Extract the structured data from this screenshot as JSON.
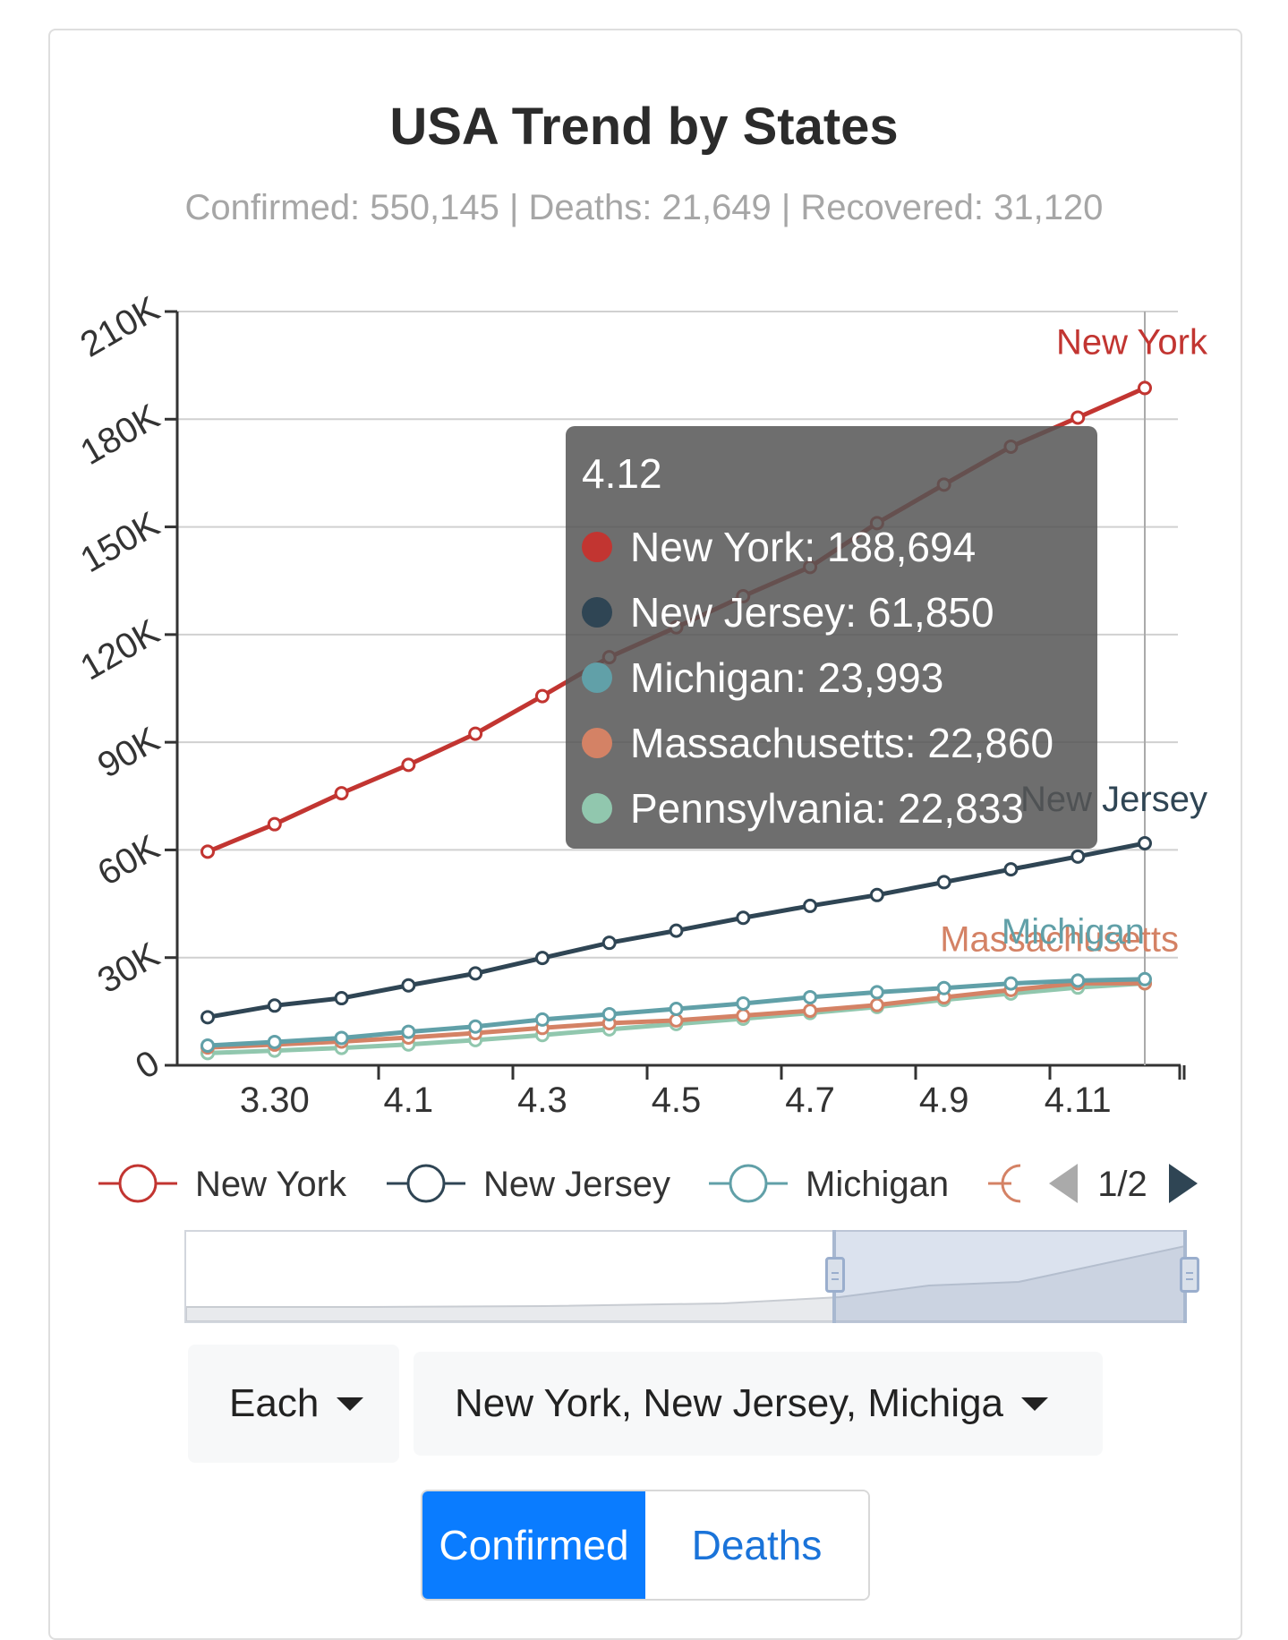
{
  "header": {
    "title": "USA Trend by States",
    "subtitle": "Confirmed: 550,145 | Deaths: 21,649 | Recovered: 31,120"
  },
  "chart_data": {
    "type": "line",
    "x_ticks": [
      "3.30",
      "4.1",
      "4.3",
      "4.5",
      "4.7",
      "4.9",
      "4.11"
    ],
    "y_ticks": [
      "0",
      "30K",
      "60K",
      "90K",
      "120K",
      "150K",
      "180K",
      "210K"
    ],
    "ylim": [
      0,
      210000
    ],
    "grid": true,
    "series": [
      {
        "name": "New York",
        "color": "#c23531",
        "values": [
          59513,
          67174,
          75795,
          83712,
          92381,
          102863,
          113704,
          122031,
          130689,
          138836,
          151061,
          161779,
          172348,
          180458,
          188694
        ]
      },
      {
        "name": "New Jersey",
        "color": "#2f4554",
        "values": [
          13386,
          16636,
          18696,
          22255,
          25590,
          29895,
          34124,
          37505,
          41090,
          44416,
          47437,
          51027,
          54588,
          58151,
          61850
        ]
      },
      {
        "name": "Michigan",
        "color": "#61a0a8",
        "values": [
          5486,
          6498,
          7615,
          9334,
          10791,
          12744,
          14225,
          15718,
          17221,
          18970,
          20346,
          21504,
          22783,
          23605,
          23993
        ]
      },
      {
        "name": "Massachusetts",
        "color": "#d48265",
        "values": [
          4955,
          5752,
          6620,
          7738,
          8966,
          10402,
          11736,
          12500,
          13837,
          15202,
          16790,
          18941,
          20974,
          22860,
          22860
        ]
      },
      {
        "name": "Pennsylvania",
        "color": "#91c7ae",
        "values": [
          3394,
          4087,
          4843,
          5805,
          7016,
          8420,
          10017,
          11510,
          12980,
          14559,
          16239,
          18228,
          19979,
          21655,
          22833
        ]
      }
    ],
    "end_labels": [
      "New York",
      "New Jersey",
      "Massachusetts",
      "Michigan"
    ]
  },
  "tooltip": {
    "date": "4.12",
    "rows": [
      {
        "text": "New York: 188,694",
        "color": "#c23531"
      },
      {
        "text": "New Jersey: 61,850",
        "color": "#2f4554"
      },
      {
        "text": "Michigan: 23,993",
        "color": "#61a0a8"
      },
      {
        "text": "Massachusetts: 22,860",
        "color": "#d48265"
      },
      {
        "text": "Pennsylvania: 22,833",
        "color": "#91c7ae"
      }
    ]
  },
  "legend": {
    "items": [
      {
        "name": "New York",
        "color": "#c23531"
      },
      {
        "name": "New Jersey",
        "color": "#2f4554"
      },
      {
        "name": "Michigan",
        "color": "#61a0a8"
      }
    ],
    "partial_color": "#d48265",
    "page": "1/2"
  },
  "controls": {
    "mode_label": "Each",
    "states_label": "New York, New Jersey, Michiga",
    "toggle": {
      "confirmed": "Confirmed",
      "deaths": "Deaths"
    }
  }
}
